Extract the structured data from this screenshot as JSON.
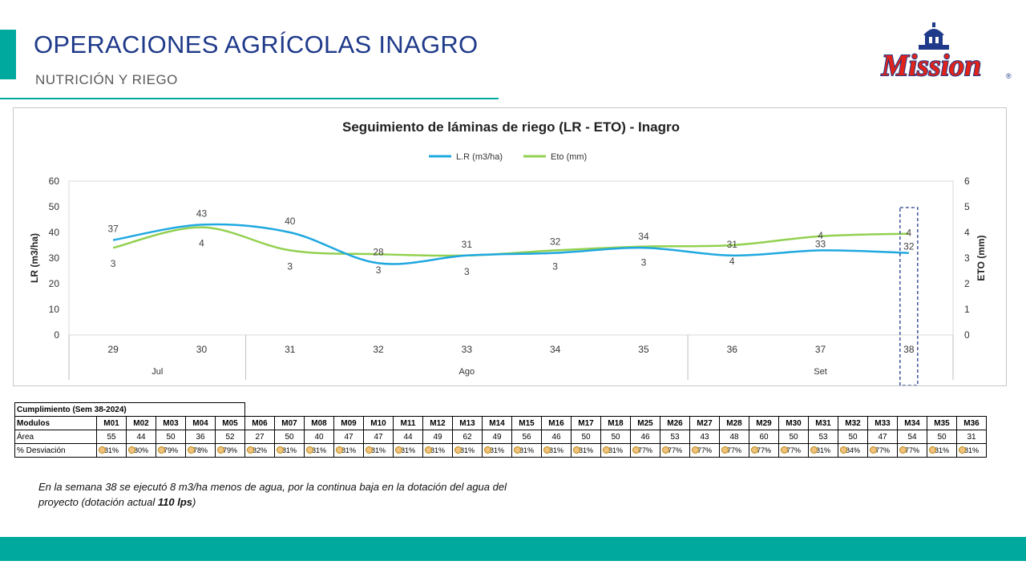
{
  "header": {
    "title": "OPERACIONES AGRÍCOLAS INAGRO",
    "subtitle": "NUTRICIÓN Y RIEGO"
  },
  "logo": {
    "text": "Mission",
    "reg": "®"
  },
  "colors": {
    "accent": "#00a99d",
    "title": "#1f3a8a",
    "lr_line": "#1fa8e0",
    "eto_line": "#92d050",
    "highlight_box": "#1f3a8a",
    "dot": "#f1c27d"
  },
  "chart_data": {
    "type": "line",
    "title": "Seguimiento de láminas de riego (LR - ETO) - Inagro",
    "xlabel": "",
    "ylabel": "LR (m3/ha)",
    "y2label": "ETO (mm)",
    "categories": [
      "29",
      "30",
      "31",
      "32",
      "33",
      "34",
      "35",
      "36",
      "37",
      "38"
    ],
    "groups": [
      {
        "label": "Jul",
        "span": [
          0,
          1
        ]
      },
      {
        "label": "Ago",
        "span": [
          2,
          6
        ]
      },
      {
        "label": "Set",
        "span": [
          7,
          9
        ]
      }
    ],
    "ylim": [
      0,
      60
    ],
    "y_ticks": [
      0,
      10,
      20,
      30,
      40,
      50,
      60
    ],
    "y2lim": [
      0,
      6
    ],
    "y2_ticks": [
      0,
      1,
      2,
      3,
      4,
      5,
      6
    ],
    "series": [
      {
        "name": "L.R (m3/ha)",
        "axis": "left",
        "values": [
          37,
          43,
          40,
          28,
          31,
          32,
          34,
          31,
          33,
          32
        ],
        "labels": [
          "37",
          "43",
          "40",
          "28",
          "31",
          "32",
          "34",
          "31",
          "33",
          "32"
        ]
      },
      {
        "name": "Eto (mm)",
        "axis": "right",
        "values": [
          3.4,
          4.2,
          3.3,
          3.15,
          3.1,
          3.3,
          3.45,
          3.5,
          3.85,
          3.95
        ],
        "labels": [
          "3",
          "4",
          "3",
          "3",
          "3",
          "3",
          "3",
          "4",
          "4",
          "4"
        ]
      }
    ],
    "legend": "top",
    "grid": false,
    "highlight_category": "38"
  },
  "table": {
    "title": "Cumplimiento (Sem 38-2024)",
    "row_headers": [
      "Modulos",
      "Área",
      "% Desviación"
    ],
    "modules": [
      "M01",
      "M02",
      "M03",
      "M04",
      "M05",
      "M06",
      "M07",
      "M08",
      "M09",
      "M10",
      "M11",
      "M12",
      "M13",
      "M14",
      "M15",
      "M16",
      "M17",
      "M18",
      "M25",
      "M26",
      "M27",
      "M28",
      "M29",
      "M30",
      "M31",
      "M32",
      "M33",
      "M34",
      "M35",
      "M36"
    ],
    "area": [
      "55",
      "44",
      "50",
      "36",
      "52",
      "27",
      "50",
      "40",
      "47",
      "47",
      "44",
      "49",
      "62",
      "49",
      "56",
      "46",
      "50",
      "50",
      "46",
      "53",
      "43",
      "48",
      "60",
      "50",
      "53",
      "50",
      "47",
      "54",
      "50",
      "31"
    ],
    "deviation": [
      "81%",
      "80%",
      "79%",
      "78%",
      "79%",
      "82%",
      "81%",
      "81%",
      "81%",
      "81%",
      "81%",
      "81%",
      "81%",
      "81%",
      "81%",
      "81%",
      "81%",
      "81%",
      "77%",
      "77%",
      "77%",
      "77%",
      "77%",
      "77%",
      "81%",
      "84%",
      "77%",
      "77%",
      "81%",
      "81%"
    ]
  },
  "note": {
    "text": "En la semana 38 se ejecutó 8 m3/ha menos de agua, por la continua baja en la dotación del agua del proyecto (dotación actual ",
    "bold": "110 lps",
    "end": ")"
  }
}
